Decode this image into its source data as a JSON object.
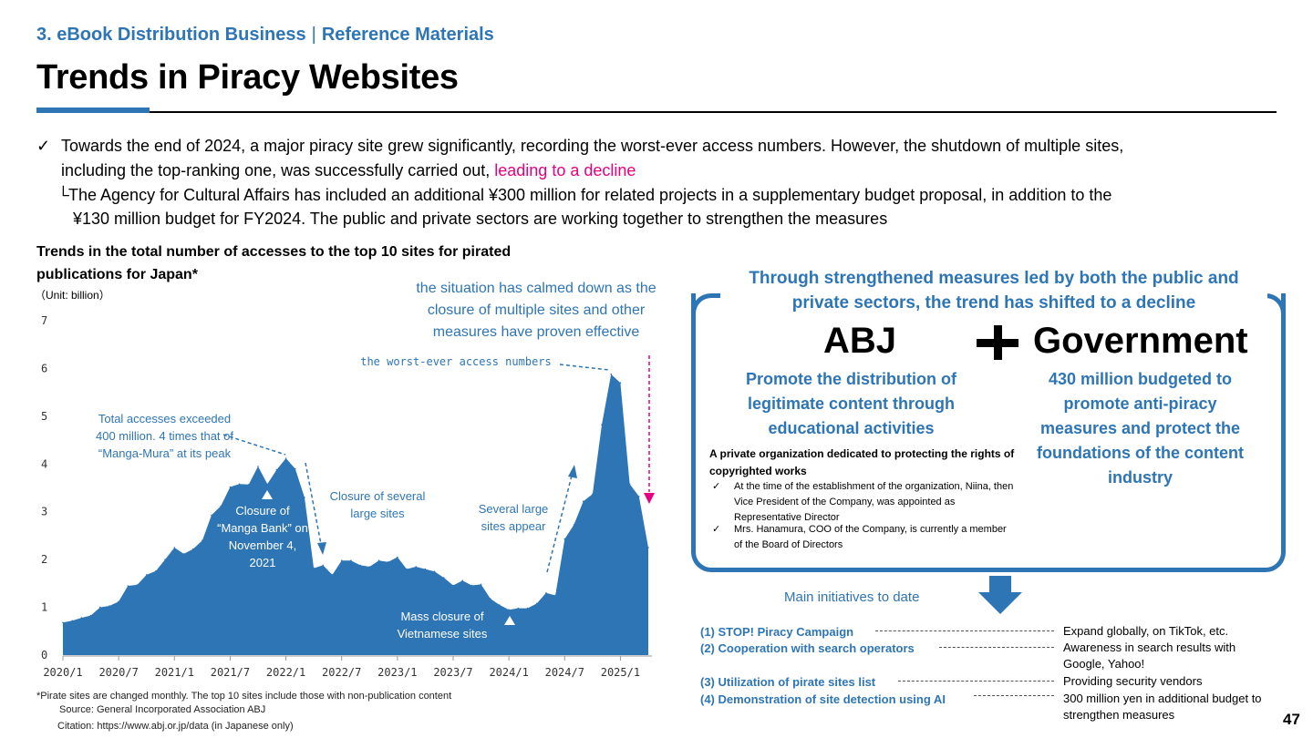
{
  "header": {
    "section": "3. eBook Distribution Business",
    "sep": "|",
    "sub": "Reference Materials",
    "title": "Trends in Piracy Websites"
  },
  "bullets": {
    "check": "✓",
    "line1": "Towards the end of 2024, a major piracy site grew significantly, recording the worst-ever access numbers. However, the shutdown of multiple sites,",
    "line2a": "including the top-ranking one, was successfully carried out, ",
    "line2b": "leading to a decline",
    "corner": "└",
    "line3": "The Agency for Cultural Affairs has included an additional ¥300 million for related projects in a supplementary budget proposal, in addition to the",
    "line4": "¥130 million budget for FY2024. The public and private sectors are working together to strengthen the measures"
  },
  "chart": {
    "title": "Trends in the total number of accesses to the top 10 sites for pirated publications for Japan*",
    "unit": "（Unit: billion）",
    "note1": "*Pirate sites are changed monthly. The top 10 sites include those with non-publication content",
    "note2": "Source: General Incorporated Association ABJ",
    "note3": "Citation: https://www.abj.or.jp/data (in Japanese only)",
    "annotations": {
      "calmed": "the situation has calmed down as the closure of multiple sites and other measures have proven effective",
      "worst": "the worst-ever access numbers",
      "exceeded": "Total accesses exceeded 400 million. 4 times that of “Manga-Mura” at its peak",
      "mangabank": "Closure of “Manga Bank” on November 4, 2021",
      "several_closure": "Closure of several large sites",
      "several_appear": "Several large sites appear",
      "vietnamese": "Mass closure of Vietnamese sites"
    }
  },
  "chart_data": {
    "type": "area",
    "ylim": [
      0,
      7
    ],
    "yticks": [
      "0",
      "1",
      "2",
      "3",
      "4",
      "5",
      "6",
      "7"
    ],
    "xtick_labels": [
      "2020/1",
      "2020/7",
      "2021/1",
      "2021/7",
      "2022/1",
      "2022/7",
      "2023/1",
      "2023/7",
      "2024/1",
      "2024/7",
      "2025/1"
    ],
    "x_start": "2020/1",
    "x_interval": "monthly",
    "values": [
      0.68,
      0.72,
      0.78,
      0.83,
      1.0,
      1.03,
      1.12,
      1.45,
      1.47,
      1.68,
      1.76,
      2.0,
      2.25,
      2.12,
      2.22,
      2.4,
      2.93,
      3.12,
      3.52,
      3.58,
      3.57,
      3.95,
      3.58,
      3.88,
      4.12,
      3.9,
      3.3,
      1.82,
      1.88,
      1.68,
      1.98,
      1.98,
      1.88,
      1.85,
      1.98,
      1.95,
      2.05,
      1.8,
      1.85,
      1.8,
      1.75,
      1.62,
      1.46,
      1.56,
      1.46,
      1.48,
      1.18,
      1.05,
      0.95,
      0.98,
      0.98,
      1.08,
      1.3,
      1.25,
      2.43,
      2.73,
      3.22,
      3.37,
      4.82,
      5.88,
      5.7,
      3.58,
      3.32,
      2.25
    ]
  },
  "panel": {
    "headline": "Through strengthened measures led by both the public and private sectors, the trend has shifted to a decline",
    "abj": "ABJ",
    "plus": "+",
    "gov": "Government",
    "abj_desc": "Promote the distribution of legitimate content through educational activities",
    "gov_desc": "430 million budgeted to promote anti-piracy measures and protect the foundations of the content industry",
    "private_org": "A private organization dedicated to protecting the rights of copyrighted works",
    "check": "✓",
    "item1": "At the time of the establishment of the organization, Niina, then Vice President of the Company, was appointed as Representative Director",
    "item2": "Mrs. Hanamura, COO of the Company, is currently a member of the Board of Directors"
  },
  "initiatives": {
    "title": "Main initiatives to date",
    "rows": [
      {
        "left": "(1) STOP! Piracy Campaign",
        "right": "Expand globally, on TikTok, etc."
      },
      {
        "left": "(2) Cooperation with search operators",
        "right": "Awareness in search results with Google, Yahoo!"
      },
      {
        "left": "(3) Utilization of pirate sites list",
        "right": "Providing security vendors"
      },
      {
        "left": "(4) Demonstration of site detection using AI",
        "right": "300 million yen in additional budget to strengthen measures"
      }
    ]
  },
  "page_number": "47",
  "colors": {
    "accent": "#2E75B6",
    "highlight": "#E6007E",
    "area": "#2E75B6"
  }
}
